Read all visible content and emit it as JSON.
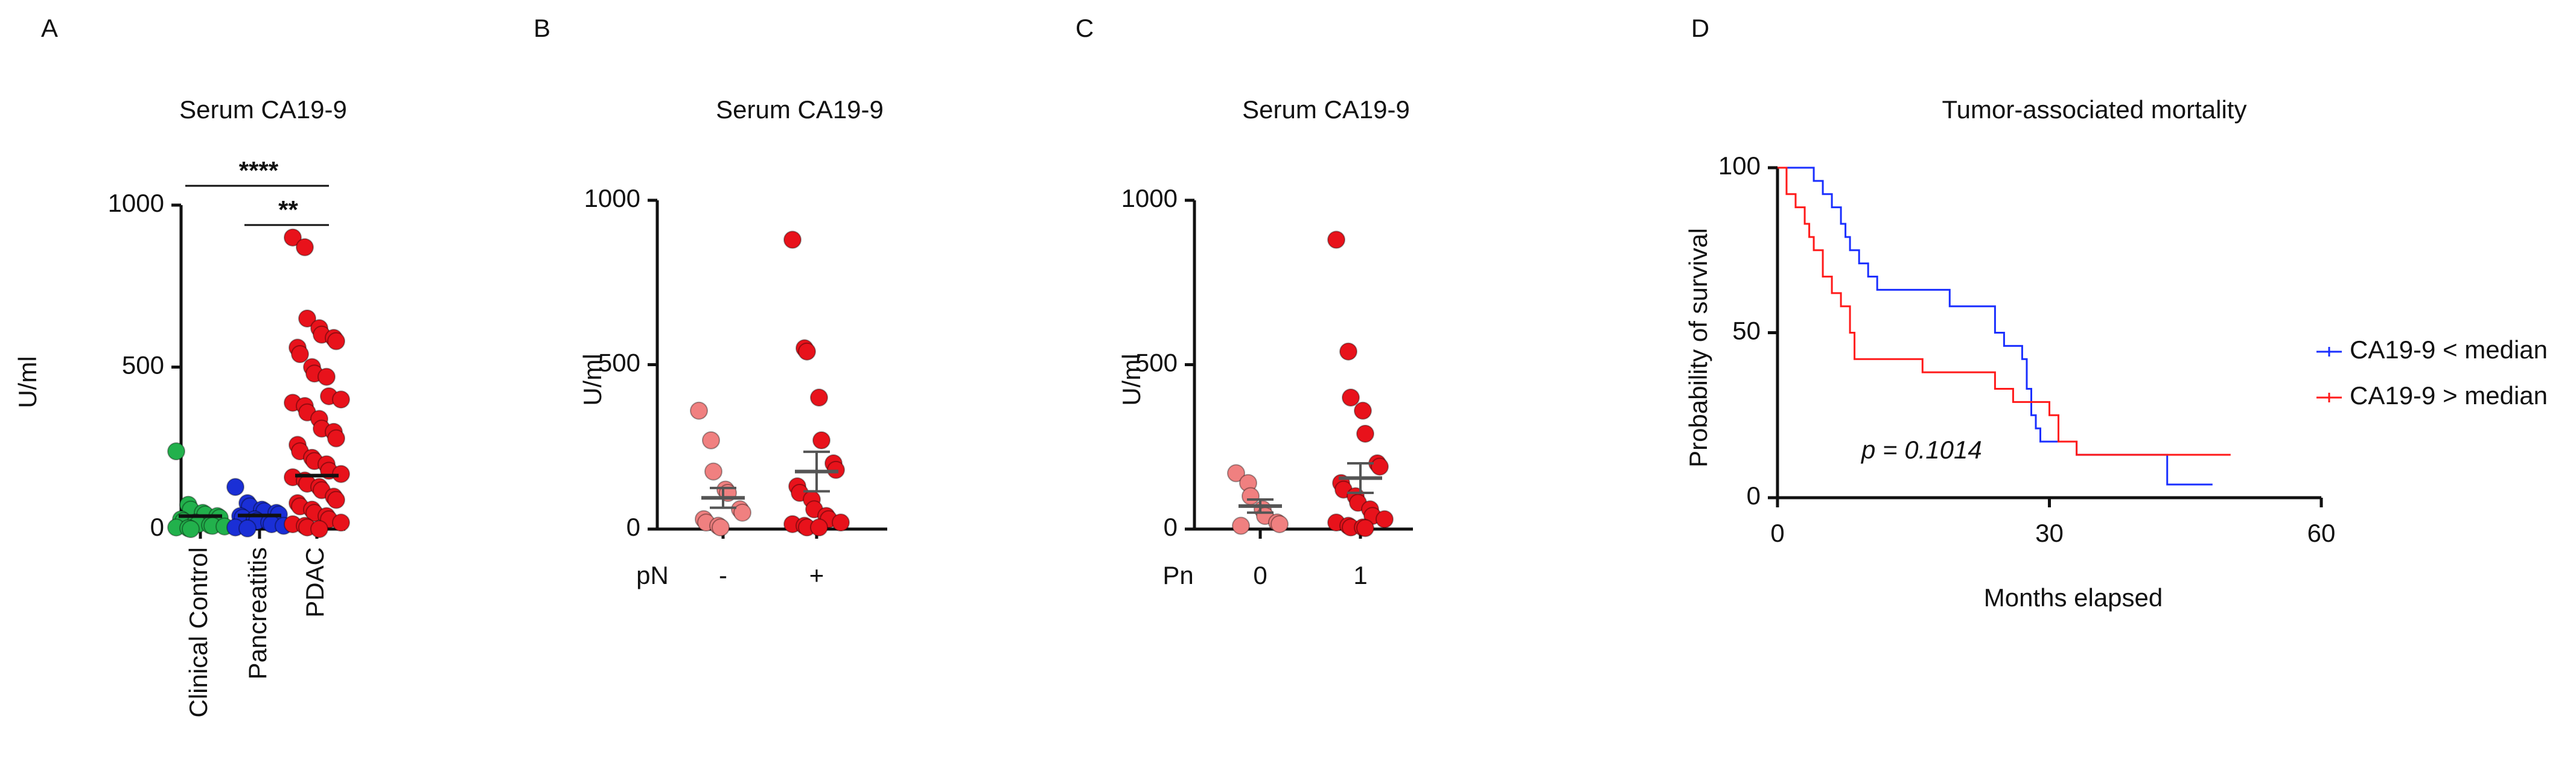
{
  "chart_data": [
    {
      "type": "strip",
      "panel": "A",
      "title": "Serum CA19-9",
      "ylabel": "U/ml",
      "categories": [
        "Clinical Control",
        "Pancreatitis",
        "PDAC"
      ],
      "rotate_categories": true,
      "colors": [
        "#22b14c",
        "#1a2fd6",
        "#e8121b"
      ],
      "values": [
        [
          240,
          75,
          60,
          50,
          45,
          40,
          35,
          30,
          25,
          20,
          15,
          12,
          10,
          8,
          5,
          3,
          0
        ],
        [
          130,
          80,
          70,
          60,
          55,
          50,
          45,
          40,
          35,
          30,
          25,
          20,
          15,
          10,
          5,
          2
        ],
        [
          900,
          870,
          650,
          620,
          600,
          590,
          580,
          560,
          540,
          500,
          480,
          470,
          410,
          400,
          390,
          380,
          360,
          340,
          310,
          300,
          280,
          260,
          240,
          220,
          210,
          200,
          180,
          170,
          160,
          150,
          140,
          130,
          120,
          100,
          90,
          80,
          70,
          60,
          50,
          40,
          30,
          20,
          15,
          10,
          5,
          0
        ]
      ],
      "means": [
        40,
        42,
        165
      ],
      "significance": [
        {
          "pair": [
            0,
            2
          ],
          "label": "****"
        },
        {
          "pair": [
            1,
            2
          ],
          "label": "**"
        }
      ],
      "ylim": [
        0,
        1000
      ],
      "yticks": [
        0,
        500,
        1000
      ]
    },
    {
      "type": "strip",
      "panel": "B",
      "title": "Serum CA19-9",
      "ylabel": "U/ml",
      "xlabel": "pN",
      "categories": [
        "-",
        "+"
      ],
      "rotate_categories": false,
      "colors": [
        "#f08080",
        "#e8121b"
      ],
      "values": [
        [
          360,
          270,
          175,
          120,
          110,
          60,
          50,
          30,
          20,
          10,
          5
        ],
        [
          880,
          550,
          540,
          400,
          270,
          200,
          180,
          130,
          110,
          90,
          60,
          40,
          30,
          20,
          15,
          10,
          5,
          5
        ]
      ],
      "means": [
        95,
        175
      ],
      "sems": [
        30,
        60
      ],
      "ylim": [
        0,
        1000
      ],
      "yticks": [
        0,
        500,
        1000
      ]
    },
    {
      "type": "strip",
      "panel": "C",
      "title": "Serum CA19-9",
      "ylabel": "U/ml",
      "xlabel": "Pn",
      "categories": [
        "0",
        "1"
      ],
      "rotate_categories": false,
      "colors": [
        "#f08080",
        "#e8121b"
      ],
      "values": [
        [
          170,
          140,
          100,
          60,
          40,
          20,
          15,
          10
        ],
        [
          880,
          540,
          400,
          360,
          290,
          200,
          190,
          140,
          120,
          100,
          80,
          60,
          40,
          30,
          20,
          10,
          5,
          5,
          3
        ]
      ],
      "means": [
        70,
        155
      ],
      "sems": [
        20,
        45
      ],
      "ylim": [
        0,
        1000
      ],
      "yticks": [
        0,
        500,
        1000
      ]
    },
    {
      "type": "line",
      "panel": "D",
      "title": "Tumor-associated mortality",
      "ylabel": "Probability of survival",
      "xlabel": "Months elapsed",
      "annotation": "p = 0.1014",
      "series": [
        {
          "name": "CA19-9 < median",
          "color": "#1a2fff",
          "x": [
            0,
            4,
            4,
            5,
            5,
            6,
            6,
            7,
            7,
            7.5,
            7.5,
            8,
            8,
            9,
            9,
            10,
            10,
            11,
            11,
            19,
            19,
            24,
            24,
            25,
            25,
            27,
            27,
            27.5,
            27.5,
            28,
            28,
            28.5,
            28.5,
            29,
            29,
            33,
            33,
            43,
            43,
            48
          ],
          "values": [
            100,
            100,
            96,
            96,
            92,
            92,
            88,
            88,
            83,
            83,
            79,
            79,
            75,
            75,
            71,
            71,
            67,
            67,
            63,
            63,
            58,
            58,
            50,
            50,
            46,
            46,
            42,
            42,
            33,
            33,
            25,
            25,
            21,
            21,
            17,
            17,
            13,
            13,
            4,
            4
          ]
        },
        {
          "name": "CA19-9 > median",
          "color": "#ff1a1a",
          "x": [
            0,
            1,
            1,
            2,
            2,
            3,
            3,
            3.5,
            3.5,
            4,
            4,
            5,
            5,
            6,
            6,
            7,
            7,
            8,
            8,
            8.5,
            8.5,
            16,
            16,
            24,
            24,
            26,
            26,
            30,
            30,
            31,
            31,
            33,
            33,
            50
          ],
          "values": [
            100,
            100,
            92,
            92,
            88,
            88,
            83,
            83,
            79,
            79,
            75,
            75,
            67,
            67,
            62,
            62,
            58,
            58,
            50,
            50,
            42,
            42,
            38,
            38,
            33,
            33,
            29,
            29,
            25,
            25,
            17,
            17,
            13,
            13
          ]
        }
      ],
      "xlim": [
        0,
        60
      ],
      "xticks": [
        0,
        30,
        60
      ],
      "ylim": [
        0,
        100
      ],
      "yticks": [
        0,
        50,
        100
      ]
    }
  ]
}
